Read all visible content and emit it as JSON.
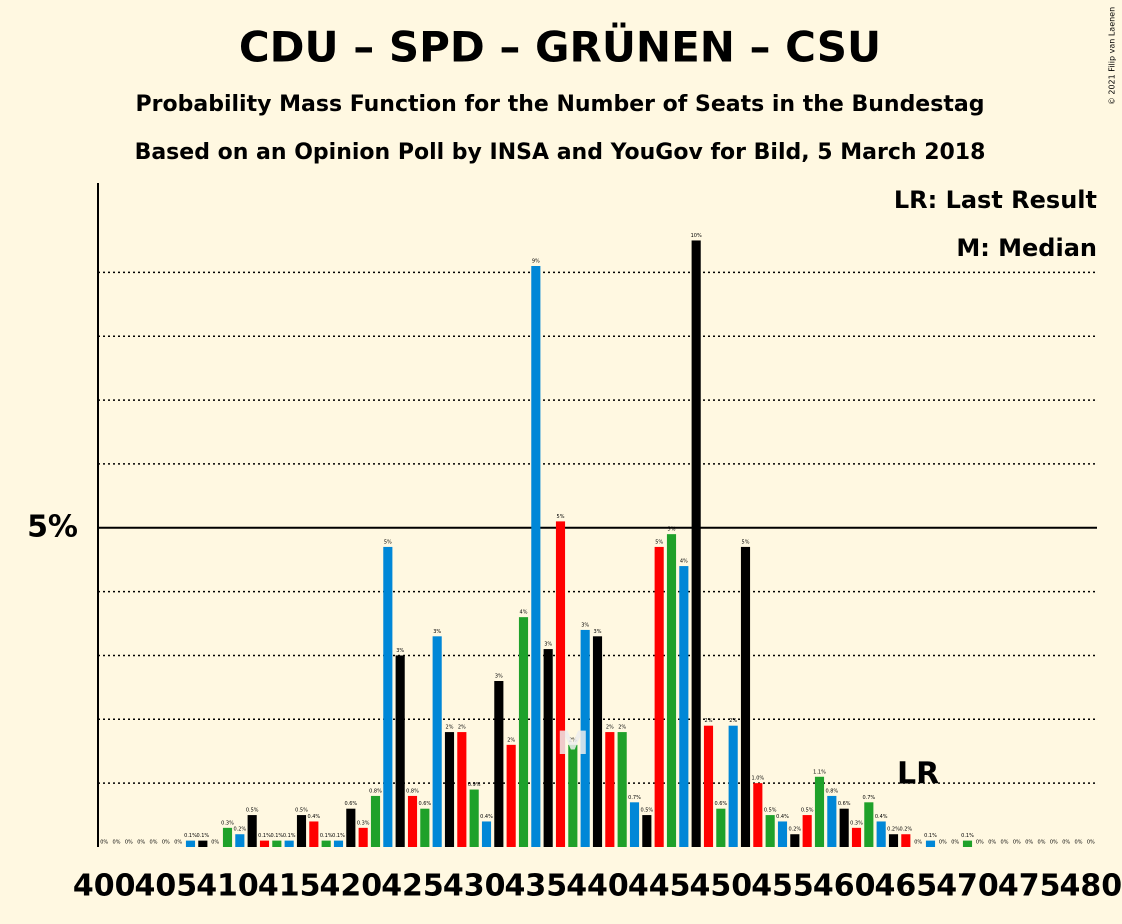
{
  "chart_data": {
    "type": "bar",
    "title": "CDU – SPD – GRÜNEN – CSU",
    "subtitle": "Probability Mass Function for the Number of Seats in the Bundestag",
    "subtitle2": "Based on an Opinion Poll by INSA and YouGov for Bild, 5 March 2018",
    "copyright": "© 2021 Filip van Laenen",
    "legend": [
      "LR: Last Result",
      "M: Median"
    ],
    "median": 438,
    "median_label": "M",
    "last_result": 466,
    "last_result_label": "LR",
    "x": [
      400,
      401,
      402,
      403,
      404,
      405,
      406,
      407,
      408,
      409,
      410,
      411,
      412,
      413,
      414,
      415,
      416,
      417,
      418,
      419,
      420,
      421,
      422,
      423,
      424,
      425,
      426,
      427,
      428,
      429,
      430,
      431,
      432,
      433,
      434,
      435,
      436,
      437,
      438,
      439,
      440,
      441,
      442,
      443,
      444,
      445,
      446,
      447,
      448,
      449,
      450,
      451,
      452,
      453,
      454,
      455,
      456,
      457,
      458,
      459,
      460,
      461,
      462,
      463,
      464,
      465,
      466,
      467,
      468,
      469,
      470,
      471,
      472,
      473,
      474,
      475,
      476,
      477,
      478,
      479,
      480
    ],
    "values": [
      0,
      0,
      0,
      0,
      0,
      0,
      0,
      0.1,
      0.1,
      0,
      0.3,
      0.2,
      0.5,
      0.1,
      0.1,
      0.1,
      0.5,
      0.4,
      0.1,
      0.1,
      0.6,
      0.3,
      0.8,
      4.7,
      3.0,
      0.8,
      0.6,
      3.3,
      1.8,
      1.8,
      0.9,
      0.4,
      2.6,
      1.6,
      3.6,
      9.1,
      3.1,
      5.1,
      1.6,
      3.4,
      3.3,
      1.8,
      1.8,
      0.7,
      0.5,
      4.7,
      4.9,
      4.4,
      9.5,
      1.9,
      0.6,
      1.9,
      4.7,
      1.0,
      0.5,
      0.4,
      0.2,
      0.5,
      1.1,
      0.8,
      0.6,
      0.3,
      0.7,
      0.4,
      0.2,
      0.2,
      0,
      0.1,
      0,
      0,
      0.1,
      0,
      0,
      0,
      0,
      0,
      0,
      0,
      0,
      0,
      0
    ],
    "value_labels": [
      "0%",
      "0%",
      "0%",
      "0%",
      "0%",
      "0%",
      "0%",
      "0.1%",
      "0.1%",
      "0%",
      "0.3%",
      "0.2%",
      "0.5%",
      "0.1%",
      "0.1%",
      "0.1%",
      "0.5%",
      "0.4%",
      "0.1%",
      "0.1%",
      "0.6%",
      "0.3%",
      "0.8%",
      "5%",
      "3%",
      "0.8%",
      "0.6%",
      "3%",
      "2%",
      "2%",
      "0.9%",
      "0.4%",
      "3%",
      "2%",
      "4%",
      "9%",
      "3%",
      "5%",
      "2%",
      "3%",
      "3%",
      "2%",
      "2%",
      "0.7%",
      "0.5%",
      "5%",
      "5%",
      "4%",
      "10%",
      "2%",
      "0.6%",
      "2%",
      "5%",
      "1.0%",
      "0.5%",
      "0.4%",
      "0.2%",
      "0.5%",
      "1.1%",
      "0.8%",
      "0.6%",
      "0.3%",
      "0.7%",
      "0.4%",
      "0.2%",
      "0.2%",
      "0%",
      "0.1%",
      "0%",
      "0%",
      "0.1%",
      "0%",
      "0%",
      "0%",
      "0%",
      "0%",
      "0%",
      "0%",
      "0%",
      "0%",
      "0%"
    ],
    "color_cycle": [
      "#000000",
      "#ff0000",
      "#1fa12a",
      "#0087d7"
    ],
    "ylim": [
      0,
      10.4
    ],
    "yticks": [
      {
        "value": 5,
        "label": "5%"
      }
    ],
    "minor_grid": [
      1,
      2,
      3,
      4,
      6,
      7,
      8,
      9
    ],
    "xticks": [
      400,
      405,
      410,
      415,
      420,
      425,
      430,
      435,
      440,
      445,
      450,
      455,
      460,
      465,
      470,
      475,
      480
    ]
  }
}
